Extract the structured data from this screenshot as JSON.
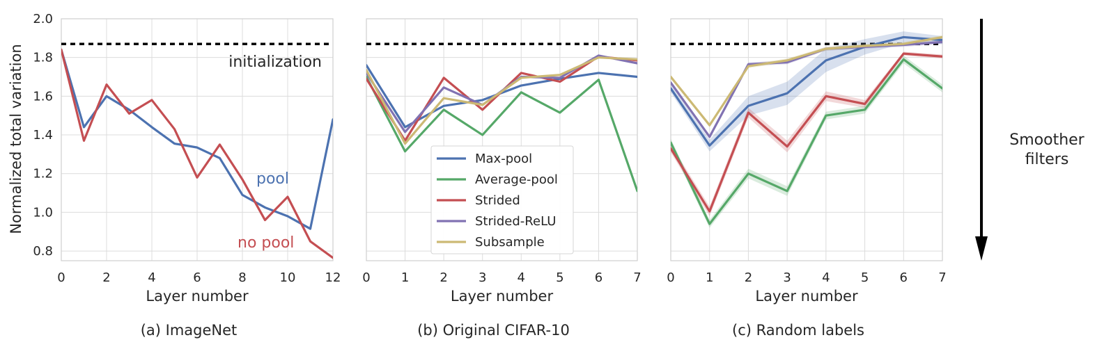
{
  "shared": {
    "ylabel": "Normalized total variation",
    "xlabel": "Layer number",
    "ylim": [
      0.75,
      2.0
    ],
    "yticks": [
      0.8,
      1.0,
      1.2,
      1.4,
      1.6,
      1.8,
      2.0
    ],
    "initialization_value": 1.87,
    "grid": true,
    "colors": {
      "Max-pool": "#4c72b0",
      "Average-pool": "#55a868",
      "Strided": "#c44e52",
      "Strided-ReLU": "#8172b2",
      "Subsample": "#ccb974",
      "initialization": "#000000"
    }
  },
  "arrow": {
    "label_line1": "Smoother",
    "label_line2": "filters",
    "direction": "down"
  },
  "legend": {
    "placement": "lower-center of panel (b)",
    "entries": [
      "Max-pool",
      "Average-pool",
      "Strided",
      "Strided-ReLU",
      "Subsample"
    ]
  },
  "chart_data": [
    {
      "type": "line",
      "caption": "(a) ImageNet",
      "xlabel": "Layer number",
      "ylabel": "Normalized total variation",
      "xlim": [
        0,
        12
      ],
      "ylim": [
        0.75,
        2.0
      ],
      "xticks": [
        0,
        2,
        4,
        6,
        8,
        10,
        12
      ],
      "annotations": {
        "initialization": "initialization",
        "pool": "pool",
        "no_pool": "no pool"
      },
      "series": [
        {
          "key": "pool",
          "color": "#4c72b0",
          "x": [
            0,
            1,
            2,
            3,
            4,
            5,
            6,
            7,
            8,
            9,
            10,
            11,
            12
          ],
          "y": [
            1.84,
            1.44,
            1.6,
            1.53,
            1.44,
            1.355,
            1.335,
            1.28,
            1.09,
            1.025,
            0.98,
            0.915,
            1.48
          ]
        },
        {
          "key": "no pool",
          "color": "#c44e52",
          "x": [
            0,
            1,
            2,
            3,
            4,
            5,
            6,
            7,
            8,
            9,
            10,
            11,
            12
          ],
          "y": [
            1.84,
            1.37,
            1.66,
            1.51,
            1.58,
            1.43,
            1.18,
            1.35,
            1.17,
            0.96,
            1.08,
            0.85,
            0.765
          ]
        }
      ]
    },
    {
      "type": "line",
      "caption": "(b) Original CIFAR-10",
      "xlabel": "Layer number",
      "xlim": [
        0,
        7
      ],
      "ylim": [
        0.75,
        2.0
      ],
      "xticks": [
        0,
        1,
        2,
        3,
        4,
        5,
        6,
        7
      ],
      "series": [
        {
          "name": "Max-pool",
          "color": "#4c72b0",
          "x": [
            0,
            1,
            2,
            3,
            4,
            5,
            6,
            7
          ],
          "y": [
            1.76,
            1.44,
            1.55,
            1.58,
            1.655,
            1.69,
            1.72,
            1.7
          ]
        },
        {
          "name": "Average-pool",
          "color": "#55a868",
          "x": [
            0,
            1,
            2,
            3,
            4,
            5,
            6,
            7
          ],
          "y": [
            1.7,
            1.315,
            1.53,
            1.4,
            1.62,
            1.515,
            1.685,
            1.11
          ]
        },
        {
          "name": "Strided",
          "color": "#c44e52",
          "x": [
            0,
            1,
            2,
            3,
            4,
            5,
            6,
            7
          ],
          "y": [
            1.69,
            1.37,
            1.695,
            1.53,
            1.72,
            1.675,
            1.805,
            1.785
          ]
        },
        {
          "name": "Strided-ReLU",
          "color": "#8172b2",
          "x": [
            0,
            1,
            2,
            3,
            4,
            5,
            6,
            7
          ],
          "y": [
            1.72,
            1.415,
            1.645,
            1.555,
            1.7,
            1.695,
            1.81,
            1.77
          ]
        },
        {
          "name": "Subsample",
          "color": "#ccb974",
          "x": [
            0,
            1,
            2,
            3,
            4,
            5,
            6,
            7
          ],
          "y": [
            1.735,
            1.355,
            1.59,
            1.555,
            1.695,
            1.71,
            1.8,
            1.79
          ]
        }
      ]
    },
    {
      "type": "line",
      "caption": "(c) Random labels",
      "xlabel": "Layer number",
      "xlim": [
        0,
        7
      ],
      "ylim": [
        0.75,
        2.0
      ],
      "xticks": [
        0,
        1,
        2,
        3,
        4,
        5,
        6,
        7
      ],
      "series": [
        {
          "name": "Max-pool",
          "color": "#4c72b0",
          "x": [
            0,
            1,
            2,
            3,
            4,
            5,
            6,
            7
          ],
          "y": [
            1.64,
            1.345,
            1.55,
            1.615,
            1.785,
            1.855,
            1.905,
            1.89
          ],
          "band": [
            0.02,
            0.03,
            0.05,
            0.06,
            0.06,
            0.04,
            0.03,
            0.02
          ]
        },
        {
          "name": "Average-pool",
          "color": "#55a868",
          "x": [
            0,
            1,
            2,
            3,
            4,
            5,
            6,
            7
          ],
          "y": [
            1.36,
            0.94,
            1.2,
            1.11,
            1.5,
            1.53,
            1.79,
            1.64
          ],
          "band": [
            0.02,
            0.02,
            0.025,
            0.025,
            0.02,
            0.02,
            0.02,
            0.02
          ]
        },
        {
          "name": "Strided",
          "color": "#c44e52",
          "x": [
            0,
            1,
            2,
            3,
            4,
            5,
            6,
            7
          ],
          "y": [
            1.33,
            1.005,
            1.515,
            1.34,
            1.6,
            1.56,
            1.82,
            1.805
          ],
          "band": [
            0.02,
            0.025,
            0.025,
            0.03,
            0.025,
            0.02,
            0.01,
            0.01
          ]
        },
        {
          "name": "Strided-ReLU",
          "color": "#8172b2",
          "x": [
            0,
            1,
            2,
            3,
            4,
            5,
            6,
            7
          ],
          "y": [
            1.67,
            1.39,
            1.765,
            1.775,
            1.845,
            1.855,
            1.865,
            1.88
          ],
          "band": [
            0.01,
            0.01,
            0.01,
            0.01,
            0.01,
            0.01,
            0.01,
            0.01
          ]
        },
        {
          "name": "Subsample",
          "color": "#ccb974",
          "x": [
            0,
            1,
            2,
            3,
            4,
            5,
            6,
            7
          ],
          "y": [
            1.7,
            1.45,
            1.755,
            1.785,
            1.845,
            1.86,
            1.87,
            1.905
          ],
          "band": [
            0.01,
            0.01,
            0.01,
            0.01,
            0.01,
            0.01,
            0.01,
            0.01
          ]
        }
      ]
    }
  ]
}
